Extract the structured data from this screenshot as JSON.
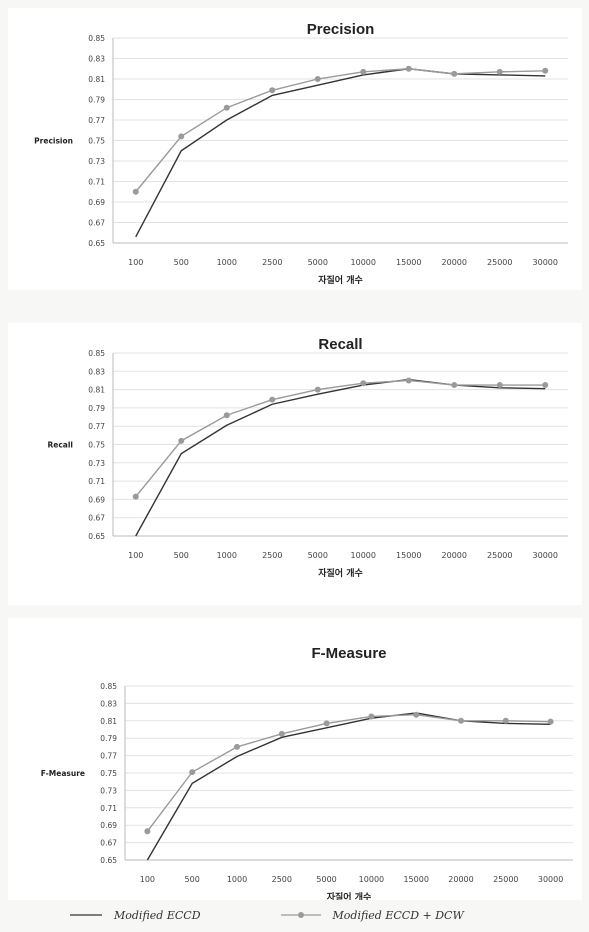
{
  "chart_data": [
    {
      "type": "line",
      "title": "Precision",
      "ylabel": "Precision",
      "xlabel": "자질어 개수",
      "categories": [
        "100",
        "500",
        "1000",
        "2500",
        "5000",
        "10000",
        "15000",
        "20000",
        "25000",
        "30000"
      ],
      "ylim": [
        0.65,
        0.85
      ],
      "yticks": [
        "0.65",
        "0.67",
        "0.69",
        "0.71",
        "0.73",
        "0.75",
        "0.77",
        "0.79",
        "0.81",
        "0.83",
        "0.85"
      ],
      "series": [
        {
          "name": "Modified ECCD",
          "values": [
            0.656,
            0.74,
            0.77,
            0.794,
            0.804,
            0.814,
            0.82,
            0.815,
            0.814,
            0.813
          ]
        },
        {
          "name": "Modified ECCD + DCW",
          "values": [
            0.7,
            0.754,
            0.782,
            0.799,
            0.81,
            0.817,
            0.82,
            0.815,
            0.817,
            0.818
          ]
        }
      ]
    },
    {
      "type": "line",
      "title": "Recall",
      "ylabel": "Recall",
      "xlabel": "자질어 개수",
      "categories": [
        "100",
        "500",
        "1000",
        "2500",
        "5000",
        "10000",
        "15000",
        "20000",
        "25000",
        "30000"
      ],
      "ylim": [
        0.65,
        0.85
      ],
      "yticks": [
        "0.65",
        "0.67",
        "0.69",
        "0.71",
        "0.73",
        "0.75",
        "0.77",
        "0.79",
        "0.81",
        "0.83",
        "0.85"
      ],
      "series": [
        {
          "name": "Modified ECCD",
          "values": [
            0.65,
            0.74,
            0.771,
            0.794,
            0.805,
            0.815,
            0.821,
            0.815,
            0.812,
            0.811
          ]
        },
        {
          "name": "Modified ECCD + DCW",
          "values": [
            0.693,
            0.754,
            0.782,
            0.799,
            0.81,
            0.817,
            0.82,
            0.815,
            0.815,
            0.815
          ]
        }
      ]
    },
    {
      "type": "line",
      "title": "F-Measure",
      "ylabel": "F-Measure",
      "xlabel": "자질어 개수",
      "categories": [
        "100",
        "500",
        "1000",
        "2500",
        "5000",
        "10000",
        "15000",
        "20000",
        "25000",
        "30000"
      ],
      "ylim": [
        0.65,
        0.85
      ],
      "yticks": [
        "0.65",
        "0.67",
        "0.69",
        "0.71",
        "0.73",
        "0.75",
        "0.77",
        "0.79",
        "0.81",
        "0.83",
        "0.85"
      ],
      "series": [
        {
          "name": "Modified ECCD",
          "values": [
            0.65,
            0.738,
            0.769,
            0.791,
            0.802,
            0.813,
            0.819,
            0.81,
            0.807,
            0.806
          ]
        },
        {
          "name": "Modified ECCD + DCW",
          "values": [
            0.683,
            0.751,
            0.78,
            0.795,
            0.807,
            0.815,
            0.817,
            0.81,
            0.81,
            0.809
          ]
        }
      ]
    }
  ],
  "legend": {
    "items": [
      {
        "label": "Modified ECCD",
        "color": "#333333",
        "marker": false
      },
      {
        "label": "Modified ECCD + DCW",
        "color": "#9a9a9a",
        "marker": true
      }
    ]
  }
}
